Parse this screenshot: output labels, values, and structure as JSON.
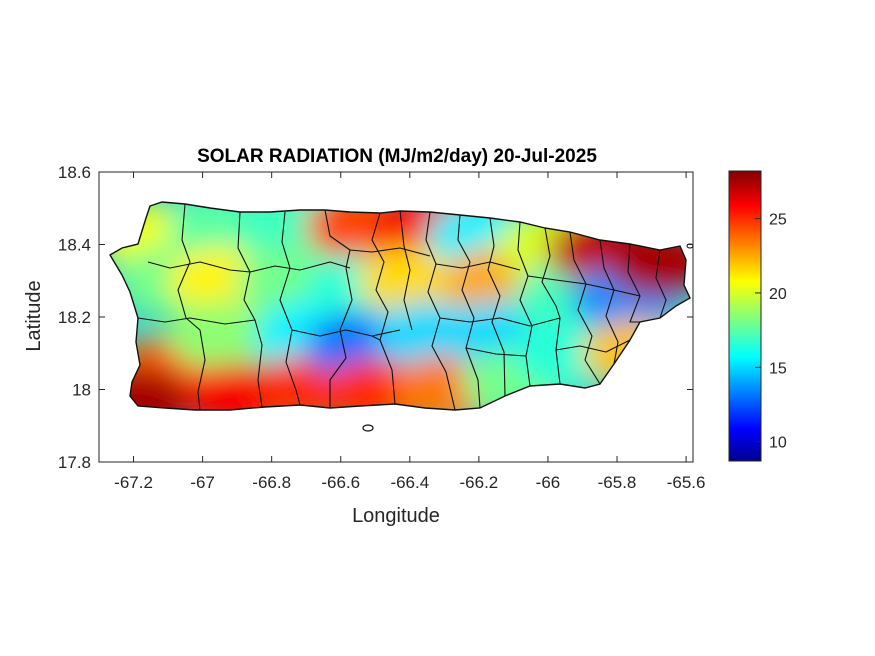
{
  "title": "SOLAR RADIATION (MJ/m2/day) 20-Jul-2025",
  "xlabel": "Longitude",
  "ylabel": "Latitude",
  "x_ticks": [
    "-67.2",
    "-67",
    "-66.8",
    "-66.6",
    "-66.4",
    "-66.2",
    "-66",
    "-65.8",
    "-65.6"
  ],
  "y_ticks": [
    "18.6",
    "18.4",
    "18.2",
    "18",
    "17.8"
  ],
  "colorbar": {
    "ticks": [
      "25",
      "20",
      "15",
      "10"
    ],
    "range": [
      8.7,
      28.2
    ],
    "colormap": "jet",
    "colors": [
      "#00008f",
      "#0000ff",
      "#00ffff",
      "#ffff00",
      "#ff0000",
      "#800000"
    ]
  },
  "chart_data": {
    "type": "heatmap",
    "title": "SOLAR RADIATION (MJ/m2/day) 20-Jul-2025",
    "xlabel": "Longitude",
    "ylabel": "Latitude",
    "xlim": [
      -67.3,
      -65.58
    ],
    "ylim": [
      17.8,
      18.6
    ],
    "grid": false,
    "region": "Puerto Rico municipalities",
    "units": "MJ/m2/day",
    "color_range": [
      8.7,
      28.2
    ],
    "zones": [
      {
        "lon": -67.15,
        "lat": 18.42,
        "value": 20.5
      },
      {
        "lon": -67.1,
        "lat": 18.3,
        "value": 18
      },
      {
        "lon": -67.1,
        "lat": 18.05,
        "value": 24
      },
      {
        "lon": -67.18,
        "lat": 17.97,
        "value": 27.5
      },
      {
        "lon": -66.95,
        "lat": 18.45,
        "value": 17.5
      },
      {
        "lon": -66.95,
        "lat": 18.3,
        "value": 21
      },
      {
        "lon": -66.95,
        "lat": 18.15,
        "value": 18.5
      },
      {
        "lon": -66.9,
        "lat": 17.98,
        "value": 26
      },
      {
        "lon": -66.75,
        "lat": 18.46,
        "value": 17
      },
      {
        "lon": -66.75,
        "lat": 18.3,
        "value": 18
      },
      {
        "lon": -66.7,
        "lat": 18.15,
        "value": 15.5
      },
      {
        "lon": -66.7,
        "lat": 18.0,
        "value": 25
      },
      {
        "lon": -66.55,
        "lat": 18.45,
        "value": 24.5
      },
      {
        "lon": -66.55,
        "lat": 18.28,
        "value": 16.5
      },
      {
        "lon": -66.55,
        "lat": 18.12,
        "value": 13
      },
      {
        "lon": -66.5,
        "lat": 17.99,
        "value": 25
      },
      {
        "lon": -66.35,
        "lat": 18.45,
        "value": 26
      },
      {
        "lon": -66.4,
        "lat": 18.3,
        "value": 21.5
      },
      {
        "lon": -66.35,
        "lat": 18.15,
        "value": 15
      },
      {
        "lon": -66.3,
        "lat": 18.0,
        "value": 23.5
      },
      {
        "lon": -66.2,
        "lat": 18.42,
        "value": 15.5
      },
      {
        "lon": -66.15,
        "lat": 18.3,
        "value": 22.5
      },
      {
        "lon": -66.15,
        "lat": 18.15,
        "value": 15
      },
      {
        "lon": -66.1,
        "lat": 18.02,
        "value": 18
      },
      {
        "lon": -66.0,
        "lat": 18.4,
        "value": 20
      },
      {
        "lon": -65.95,
        "lat": 18.25,
        "value": 17
      },
      {
        "lon": -65.95,
        "lat": 18.1,
        "value": 16.5
      },
      {
        "lon": -65.85,
        "lat": 18.38,
        "value": 27
      },
      {
        "lon": -65.78,
        "lat": 18.25,
        "value": 13.5
      },
      {
        "lon": -65.68,
        "lat": 18.35,
        "value": 27.5
      },
      {
        "lon": -65.75,
        "lat": 18.1,
        "value": 22
      }
    ]
  }
}
